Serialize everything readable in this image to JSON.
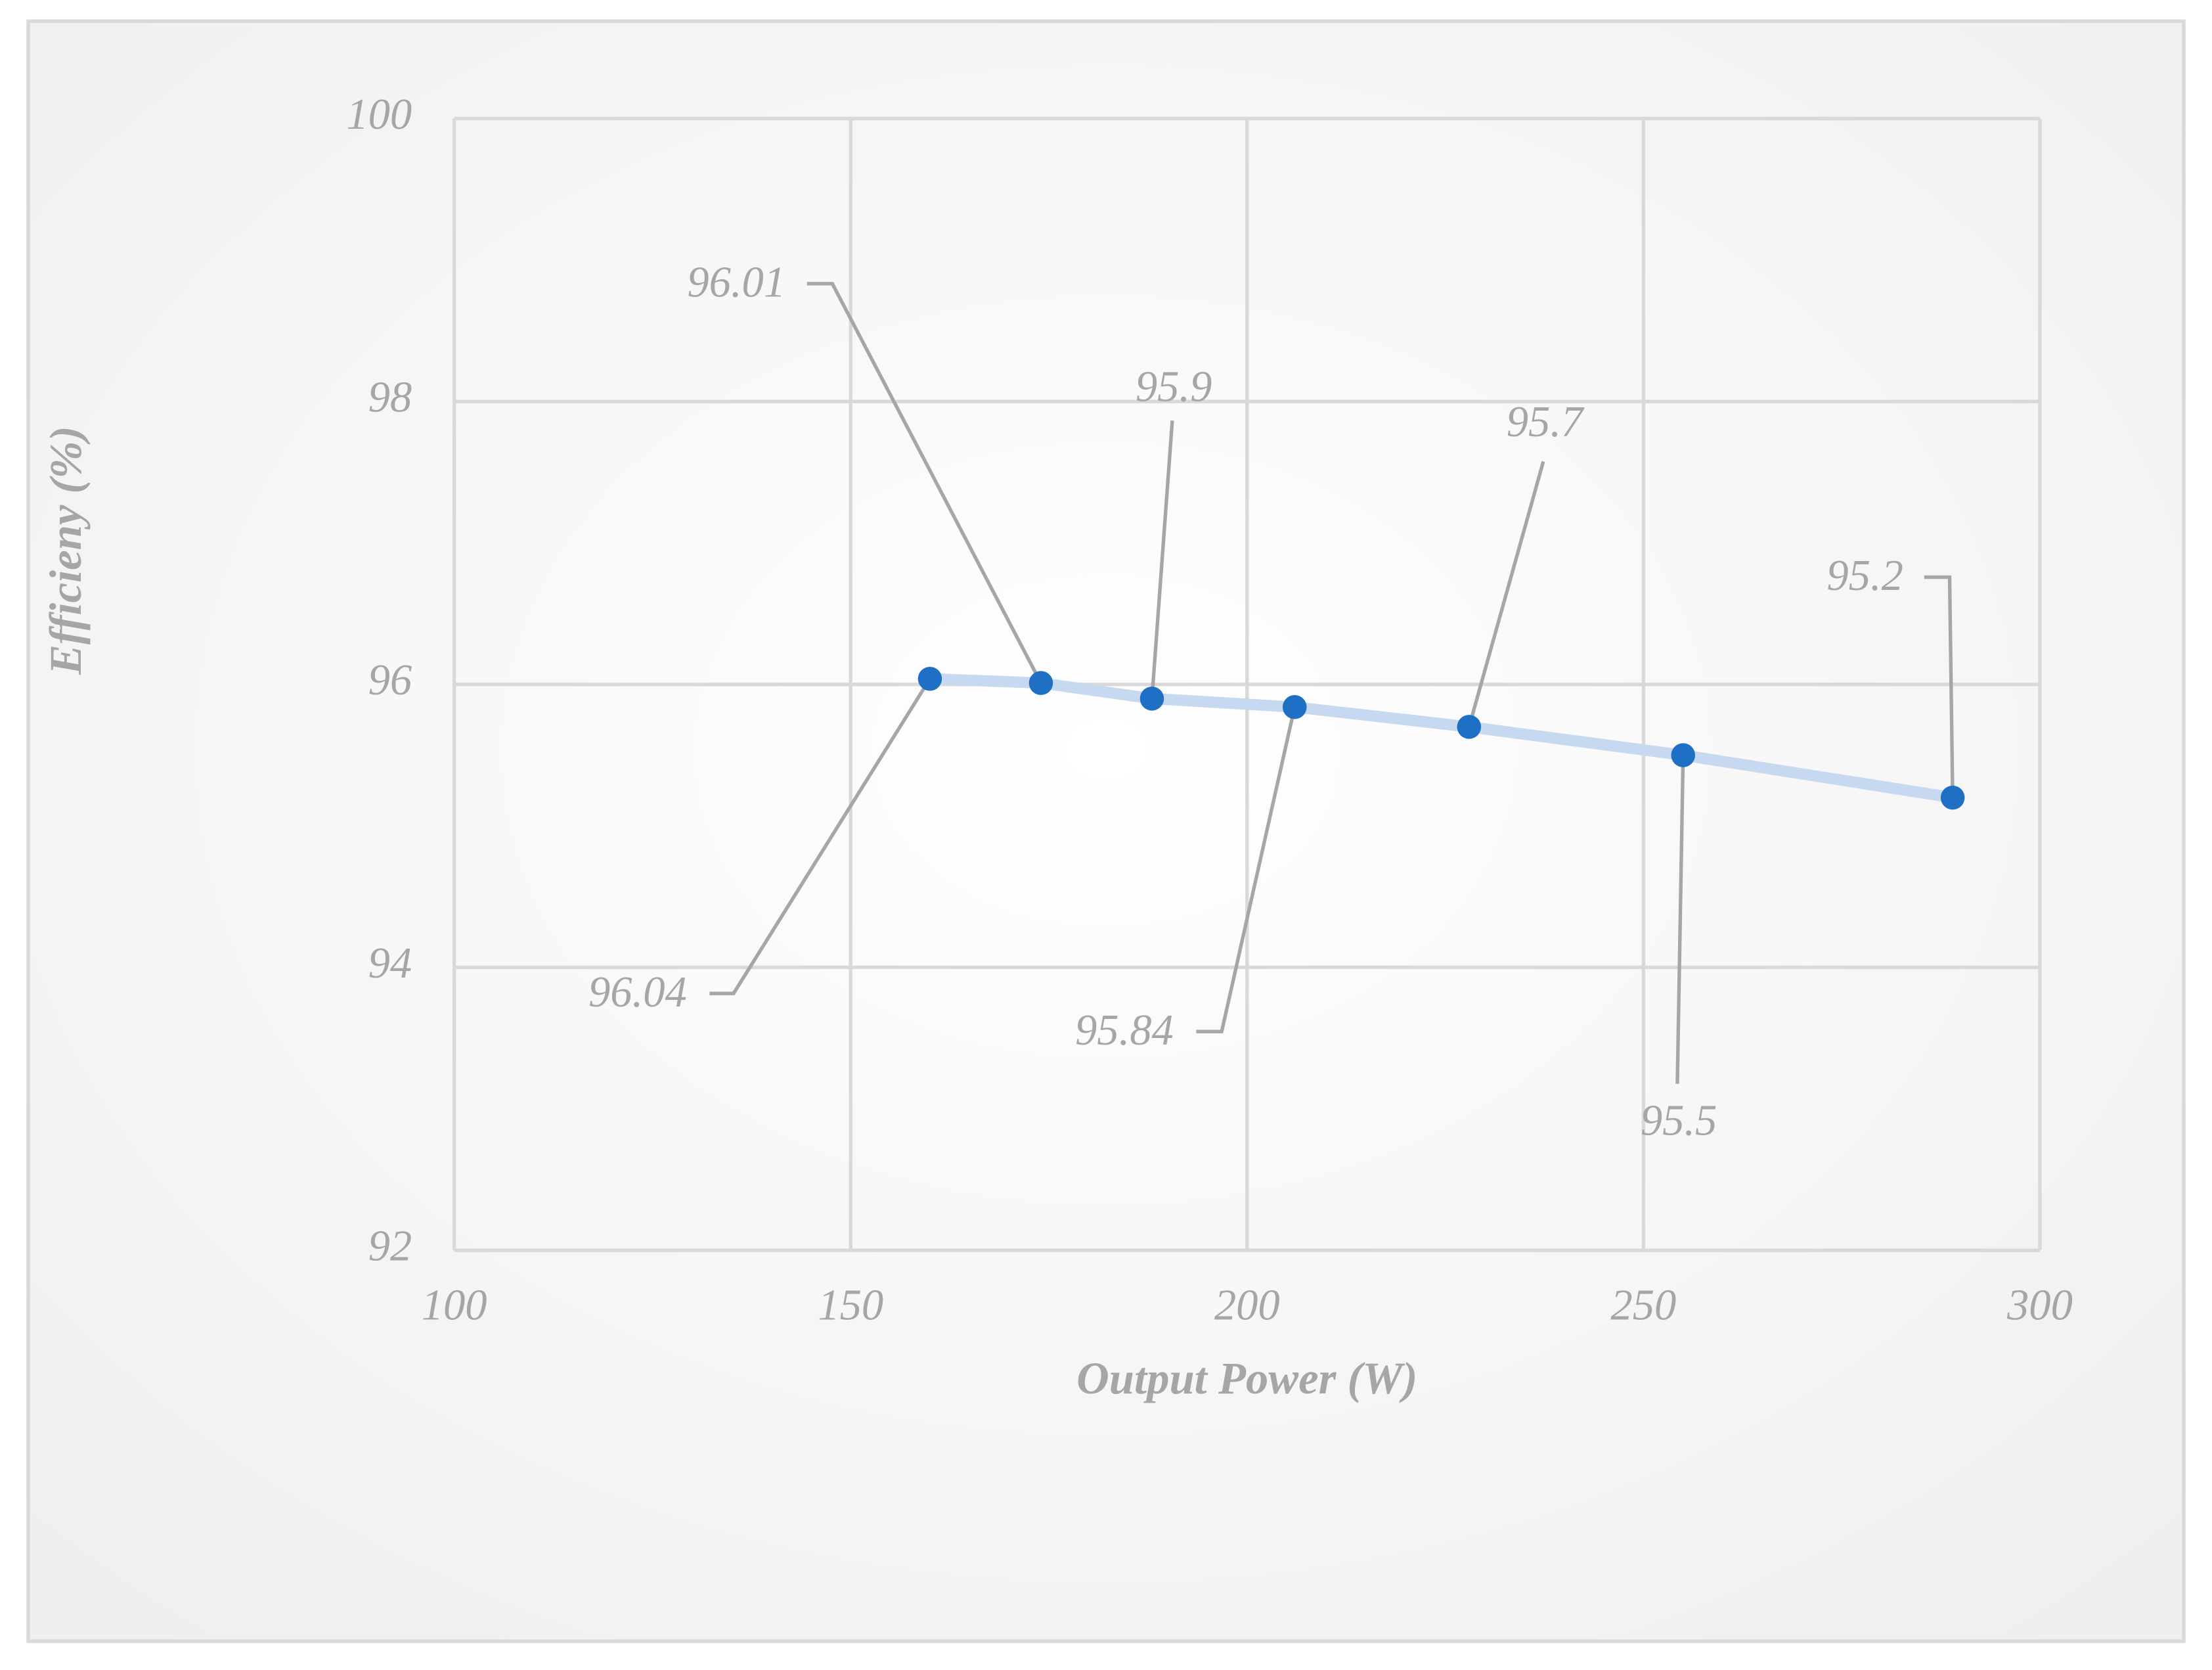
{
  "chart_data": {
    "type": "scatter",
    "x_label": "Output Power (W)",
    "y_label": "Efficieny (%)",
    "series": [
      {
        "color": "#1f6fc5",
        "x": [
          160,
          174,
          188,
          206,
          228,
          255,
          289
        ],
        "values": [
          96.04,
          96.01,
          95.9,
          95.84,
          95.7,
          95.5,
          95.2
        ]
      }
    ],
    "line_color": "#c6d9f1",
    "xlim": [
      100,
      300
    ],
    "xticks": [
      100,
      150,
      200,
      250,
      300
    ],
    "ylim": [
      92,
      100
    ],
    "yticks": [
      92,
      94,
      96,
      98,
      100
    ],
    "grid": true
  }
}
